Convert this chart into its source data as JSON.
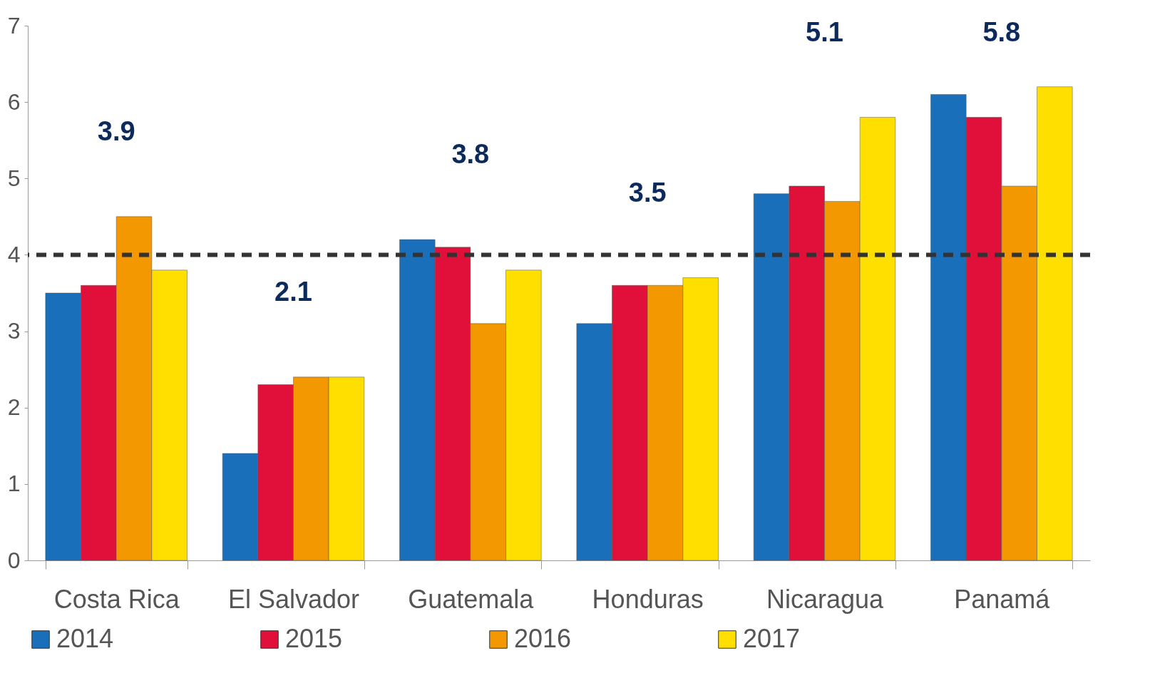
{
  "chart_data": {
    "type": "bar",
    "categories": [
      "Costa Rica",
      "El Salvador",
      "Guatemala",
      "Honduras",
      "Nicaragua",
      "Panamá"
    ],
    "series": [
      {
        "name": "2014",
        "color": "#1a6fba",
        "values": [
          3.5,
          1.4,
          4.2,
          3.1,
          4.8,
          6.1
        ]
      },
      {
        "name": "2015",
        "color": "#e0103a",
        "values": [
          3.6,
          2.3,
          4.1,
          3.6,
          4.9,
          5.8
        ]
      },
      {
        "name": "2016",
        "color": "#f39800",
        "values": [
          4.5,
          2.4,
          3.1,
          3.6,
          4.7,
          4.9
        ]
      },
      {
        "name": "2017",
        "color": "#ffdf00",
        "values": [
          3.8,
          2.4,
          3.8,
          3.7,
          5.8,
          6.2
        ]
      }
    ],
    "ylim": [
      0,
      7
    ],
    "yticks": [
      0,
      1,
      2,
      3,
      4,
      5,
      6,
      7
    ],
    "grid": false,
    "legend": "bottom",
    "ref_lines": [
      {
        "axis": "y",
        "value": 4,
        "color": "#333333",
        "line_style": "dashed"
      }
    ],
    "annotations": [
      "3.9",
      "2.1",
      "3.8",
      "3.5",
      "5.1",
      "5.8"
    ]
  }
}
